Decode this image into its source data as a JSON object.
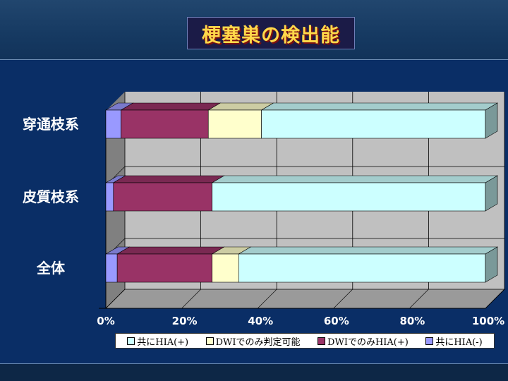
{
  "slide": {
    "title": "梗塞巣の検出能"
  },
  "colors": {
    "both_hia_pos": "#ccffff",
    "dwi_only_possible": "#ffffcc",
    "dwi_only_hia_pos": "#993366",
    "both_hia_neg": "#9999ff",
    "plot_wall": "#c0c0c0",
    "plot_floor": "#808080"
  },
  "chart_data": {
    "type": "bar",
    "orientation": "horizontal",
    "stacked": "percent",
    "categories": [
      "穿通枝系",
      "皮質枝系",
      "全体"
    ],
    "series": [
      {
        "name": "共にHIA(-)",
        "values": [
          4,
          2,
          3
        ]
      },
      {
        "name": "DWIでのみHIA(+)",
        "values": [
          23,
          26,
          25
        ]
      },
      {
        "name": "DWIでのみ判定可能",
        "values": [
          14,
          0,
          7
        ]
      },
      {
        "name": "共にHIA(+)",
        "values": [
          59,
          72,
          65
        ]
      }
    ],
    "x_ticks": [
      "0%",
      "20%",
      "40%",
      "60%",
      "80%",
      "100%"
    ],
    "xlim": [
      0,
      100
    ],
    "grid": true,
    "legend": {
      "position": "bottom",
      "order": [
        "共にHIA(+)",
        "DWIでのみ判定可能",
        "DWIでのみHIA(+)",
        "共にHIA(-)"
      ]
    }
  }
}
